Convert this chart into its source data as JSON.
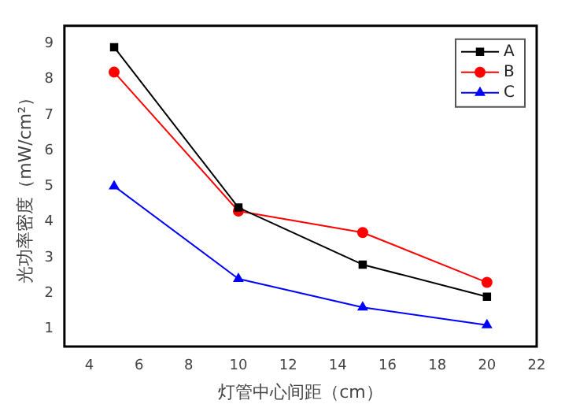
{
  "chart_data": {
    "type": "line",
    "xlabel": "灯管中心间距（cm）",
    "ylabel": "光功率密度（mW/cm²）",
    "xlim": [
      3,
      22
    ],
    "xticks": [
      4,
      6,
      8,
      10,
      12,
      14,
      16,
      18,
      20,
      22
    ],
    "ylim": [
      0.5,
      9.5
    ],
    "yticks": [
      1,
      2,
      3,
      4,
      5,
      6,
      7,
      8,
      9
    ],
    "x": [
      5,
      10,
      15,
      20
    ],
    "grid": false,
    "legend": "top right",
    "series": [
      {
        "name": "A",
        "color": "#000000",
        "marker": "square",
        "values": [
          8.9,
          4.4,
          2.8,
          1.9
        ]
      },
      {
        "name": "B",
        "color": "#ff0000",
        "marker": "circle",
        "values": [
          8.2,
          4.3,
          3.7,
          2.3
        ]
      },
      {
        "name": "C",
        "color": "#0000ff",
        "marker": "triangle",
        "values": [
          5.0,
          2.4,
          1.6,
          1.1
        ]
      }
    ]
  }
}
